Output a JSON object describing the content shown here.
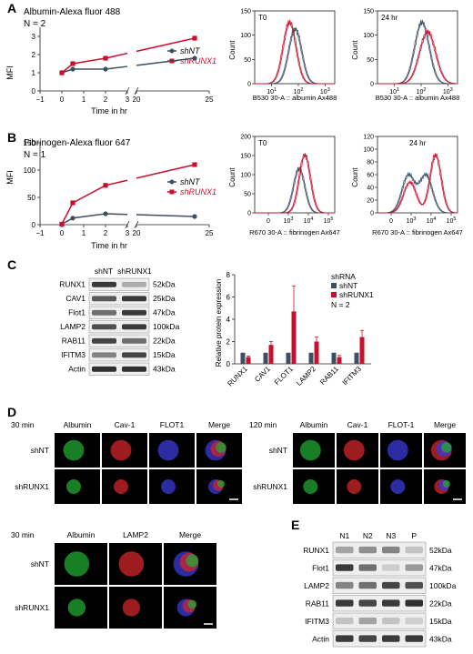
{
  "panels": {
    "A": {
      "letter": "A",
      "title": "Albumin-Alexa fluor 488",
      "n": "N = 2",
      "ylabel": "MFI",
      "xlabel": "Time in hr",
      "legend": [
        "shNT",
        "shRUNX1"
      ],
      "flow": [
        {
          "tag": "T0",
          "xlabel": "B530 30-A :: albumin Ax488",
          "ylabel": "Count",
          "yticks": [
            "0",
            "50",
            "100",
            "150"
          ],
          "xticks": [
            "10^1",
            "10^2",
            "10^3"
          ]
        },
        {
          "tag": "24 hr",
          "xlabel": "B530 30-A :: albumin Ax488",
          "ylabel": "Count",
          "yticks": [
            "0",
            "50",
            "100",
            "150"
          ],
          "xticks": [
            "10^1",
            "10^2",
            "10^3"
          ]
        }
      ]
    },
    "B": {
      "letter": "B",
      "title": "Fibrinogen-Alexa fluor 647",
      "n": "N = 1",
      "ylabel": "MFI",
      "xlabel": "Time in hr",
      "legend": [
        "shNT",
        "shRUNX1"
      ],
      "flow": [
        {
          "tag": "T0",
          "xlabel": "R670 30-A :: fibrinogen Ax647",
          "ylabel": "Count",
          "yticks": [
            "0",
            "50",
            "100",
            "150",
            "200"
          ],
          "xticks": [
            "0",
            "10^3",
            "10^4",
            "10^5"
          ]
        },
        {
          "tag": "24 hr",
          "xlabel": "R670 30-A :: fibrinogen Ax647",
          "ylabel": "Count",
          "yticks": [
            "0",
            "20",
            "40",
            "60",
            "80",
            "100",
            "120"
          ],
          "xticks": [
            "0",
            "10^3",
            "10^4",
            "10^5"
          ]
        }
      ]
    },
    "C": {
      "letter": "C",
      "blot_cols": [
        "shNT",
        "shRUNX1"
      ],
      "blot_rows": [
        {
          "name": "RUNX1",
          "kda": "52kDa"
        },
        {
          "name": "CAV1",
          "kda": "25kDa"
        },
        {
          "name": "Flot1",
          "kda": "47kDa"
        },
        {
          "name": "LAMP2",
          "kda": "100kDa"
        },
        {
          "name": "RAB11",
          "kda": "22kDa"
        },
        {
          "name": "IFITM3",
          "kda": "15kDa"
        },
        {
          "name": "Actin",
          "kda": "43kDa"
        }
      ],
      "legend_title": "shRNA",
      "legend": [
        "shNT",
        "shRUNX1"
      ],
      "n": "N = 2",
      "ylabel": "Relative protein expression"
    },
    "D": {
      "letter": "D",
      "grid1": {
        "time": "30 min",
        "cols": [
          "Albumin",
          "Cav-1",
          "FLOT1",
          "Merge"
        ],
        "rows": [
          "shNT",
          "shRUNX1"
        ]
      },
      "grid2": {
        "time": "120 min",
        "cols": [
          "Albumin",
          "Cav-1",
          "FLOT-1",
          "Merge"
        ],
        "rows": [
          "shNT",
          "shRUNX1"
        ]
      },
      "grid3": {
        "time": "30 min",
        "cols": [
          "Albumin",
          "LAMP2",
          "Merge"
        ],
        "rows": [
          "shNT",
          "shRUNX1"
        ]
      }
    },
    "E": {
      "letter": "E",
      "cols": [
        "N1",
        "N2",
        "N3",
        "P"
      ],
      "rows": [
        {
          "name": "RUNX1",
          "kda": "52kDa"
        },
        {
          "name": "Flot1",
          "kda": "47kDa"
        },
        {
          "name": "LAMP2",
          "kda": "100kDa"
        },
        {
          "name": "RAB11",
          "kda": "22kDa"
        },
        {
          "name": "IFITM3",
          "kda": "15kDa"
        },
        {
          "name": "Actin",
          "kda": "43kDa"
        }
      ]
    }
  },
  "colors": {
    "shNT": "#3d4f63",
    "shRUNX1": "#c8102e"
  },
  "chart_data": [
    {
      "type": "line",
      "panel": "A",
      "title": "Albumin-Alexa fluor 488",
      "xlabel": "Time in hr",
      "ylabel": "MFI",
      "x_axis_break": [
        3,
        20
      ],
      "xticks": [
        -1,
        0,
        1,
        2,
        3,
        20,
        25
      ],
      "yticks": [
        0,
        1,
        2,
        3
      ],
      "ylim": [
        0,
        3.5
      ],
      "series": [
        {
          "name": "shNT",
          "x": [
            0,
            0.5,
            2,
            24
          ],
          "y": [
            1.0,
            1.2,
            1.2,
            1.8
          ]
        },
        {
          "name": "shRUNX1",
          "x": [
            0,
            0.5,
            2,
            24
          ],
          "y": [
            1.0,
            1.5,
            1.8,
            2.9
          ]
        }
      ]
    },
    {
      "type": "line",
      "panel": "B",
      "title": "Fibrinogen-Alexa fluor 647",
      "xlabel": "Time in hr",
      "ylabel": "MFI",
      "x_axis_break": [
        3,
        20
      ],
      "xticks": [
        -1,
        0,
        1,
        2,
        3,
        20,
        25
      ],
      "yticks": [
        0,
        50,
        100,
        150
      ],
      "ylim": [
        0,
        150
      ],
      "series": [
        {
          "name": "shNT",
          "x": [
            0,
            0.5,
            2,
            24
          ],
          "y": [
            1,
            12,
            20,
            15
          ]
        },
        {
          "name": "shRUNX1",
          "x": [
            0,
            0.5,
            2,
            24
          ],
          "y": [
            1,
            40,
            72,
            110
          ]
        }
      ]
    },
    {
      "type": "bar",
      "panel": "C",
      "ylabel": "Relative protein expression",
      "categories": [
        "RUNX1",
        "CAV1",
        "FLOT1",
        "LAMP2",
        "RAB11",
        "IFITM3"
      ],
      "yticks": [
        0,
        2,
        4,
        6,
        8
      ],
      "ylim": [
        0,
        8
      ],
      "series": [
        {
          "name": "shNT",
          "values": [
            1,
            1,
            1,
            1,
            1,
            1
          ],
          "errors": [
            0,
            0,
            0,
            0,
            0,
            0
          ]
        },
        {
          "name": "shRUNX1",
          "values": [
            0.6,
            1.7,
            4.7,
            2.0,
            0.6,
            2.4
          ],
          "errors": [
            0.1,
            0.3,
            2.3,
            0.4,
            0.15,
            0.6
          ]
        }
      ]
    }
  ]
}
